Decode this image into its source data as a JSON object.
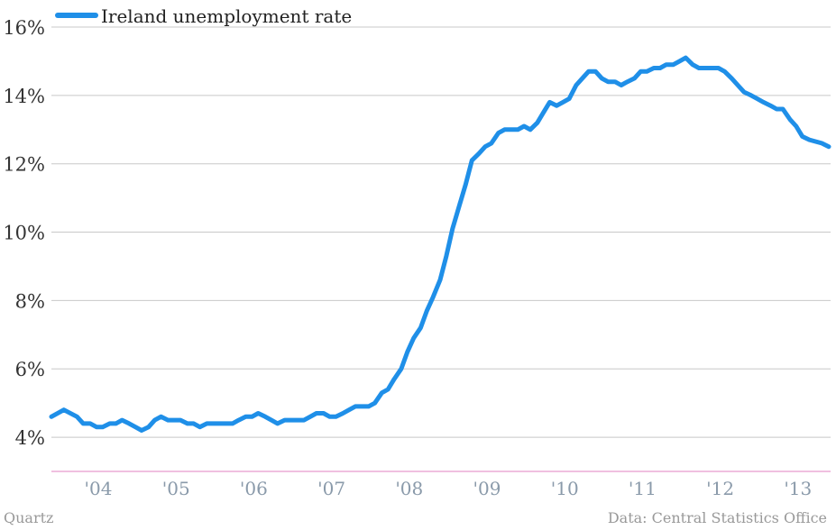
{
  "colors": {
    "series": "#1f8fe8",
    "grid": "#c8c8c8",
    "baseline": "#e080c0",
    "axis_text": "#333333",
    "x_tick_text": "#8a9aaa",
    "footer_text": "#999999"
  },
  "footer": {
    "source_left": "Quartz",
    "source_right": "Data: Central Statistics Office"
  },
  "chart_data": {
    "type": "line",
    "title": "",
    "xlabel": "",
    "ylabel": "",
    "legend_placement": "top-left",
    "grid": true,
    "ylim": [
      3,
      16
    ],
    "xlim": [
      2003.42,
      2013.42
    ],
    "y_ticks": [
      {
        "value": 4,
        "label": "4%"
      },
      {
        "value": 6,
        "label": "6%"
      },
      {
        "value": 8,
        "label": "8%"
      },
      {
        "value": 10,
        "label": "10%"
      },
      {
        "value": 12,
        "label": "12%"
      },
      {
        "value": 14,
        "label": "14%"
      },
      {
        "value": 16,
        "label": "16%"
      }
    ],
    "x_ticks": [
      {
        "value": 2004,
        "label": "'04"
      },
      {
        "value": 2005,
        "label": "'05"
      },
      {
        "value": 2006,
        "label": "'06"
      },
      {
        "value": 2007,
        "label": "'07"
      },
      {
        "value": 2008,
        "label": "'08"
      },
      {
        "value": 2009,
        "label": "'09"
      },
      {
        "value": 2010,
        "label": "'10"
      },
      {
        "value": 2011,
        "label": "'11"
      },
      {
        "value": 2012,
        "label": "'12"
      },
      {
        "value": 2013,
        "label": "'13"
      }
    ],
    "series": [
      {
        "name": "Ireland unemployment rate",
        "points": [
          [
            2003.42,
            4.6
          ],
          [
            2003.58,
            4.8
          ],
          [
            2003.75,
            4.6
          ],
          [
            2003.83,
            4.4
          ],
          [
            2003.92,
            4.4
          ],
          [
            2004.0,
            4.3
          ],
          [
            2004.08,
            4.3
          ],
          [
            2004.17,
            4.4
          ],
          [
            2004.25,
            4.4
          ],
          [
            2004.33,
            4.5
          ],
          [
            2004.42,
            4.4
          ],
          [
            2004.5,
            4.3
          ],
          [
            2004.58,
            4.2
          ],
          [
            2004.67,
            4.3
          ],
          [
            2004.75,
            4.5
          ],
          [
            2004.83,
            4.6
          ],
          [
            2004.92,
            4.5
          ],
          [
            2005.0,
            4.5
          ],
          [
            2005.08,
            4.5
          ],
          [
            2005.17,
            4.4
          ],
          [
            2005.25,
            4.4
          ],
          [
            2005.33,
            4.3
          ],
          [
            2005.42,
            4.4
          ],
          [
            2005.5,
            4.4
          ],
          [
            2005.58,
            4.4
          ],
          [
            2005.67,
            4.4
          ],
          [
            2005.75,
            4.4
          ],
          [
            2005.83,
            4.5
          ],
          [
            2005.92,
            4.6
          ],
          [
            2006.0,
            4.6
          ],
          [
            2006.08,
            4.7
          ],
          [
            2006.17,
            4.6
          ],
          [
            2006.25,
            4.5
          ],
          [
            2006.33,
            4.4
          ],
          [
            2006.42,
            4.5
          ],
          [
            2006.5,
            4.5
          ],
          [
            2006.58,
            4.5
          ],
          [
            2006.67,
            4.5
          ],
          [
            2006.75,
            4.6
          ],
          [
            2006.83,
            4.7
          ],
          [
            2006.92,
            4.7
          ],
          [
            2007.0,
            4.6
          ],
          [
            2007.08,
            4.6
          ],
          [
            2007.17,
            4.7
          ],
          [
            2007.25,
            4.8
          ],
          [
            2007.33,
            4.9
          ],
          [
            2007.42,
            4.9
          ],
          [
            2007.5,
            4.9
          ],
          [
            2007.58,
            5.0
          ],
          [
            2007.67,
            5.3
          ],
          [
            2007.75,
            5.4
          ],
          [
            2007.83,
            5.7
          ],
          [
            2007.92,
            6.0
          ],
          [
            2008.0,
            6.5
          ],
          [
            2008.08,
            6.9
          ],
          [
            2008.17,
            7.2
          ],
          [
            2008.25,
            7.7
          ],
          [
            2008.33,
            8.1
          ],
          [
            2008.42,
            8.6
          ],
          [
            2008.5,
            9.3
          ],
          [
            2008.58,
            10.1
          ],
          [
            2008.67,
            10.8
          ],
          [
            2008.75,
            11.4
          ],
          [
            2008.83,
            12.1
          ],
          [
            2008.92,
            12.3
          ],
          [
            2009.0,
            12.5
          ],
          [
            2009.08,
            12.6
          ],
          [
            2009.17,
            12.9
          ],
          [
            2009.25,
            13.0
          ],
          [
            2009.33,
            13.0
          ],
          [
            2009.42,
            13.0
          ],
          [
            2009.5,
            13.1
          ],
          [
            2009.58,
            13.0
          ],
          [
            2009.67,
            13.2
          ],
          [
            2009.75,
            13.5
          ],
          [
            2009.83,
            13.8
          ],
          [
            2009.92,
            13.7
          ],
          [
            2010.0,
            13.8
          ],
          [
            2010.08,
            13.9
          ],
          [
            2010.17,
            14.3
          ],
          [
            2010.25,
            14.5
          ],
          [
            2010.33,
            14.7
          ],
          [
            2010.42,
            14.7
          ],
          [
            2010.5,
            14.5
          ],
          [
            2010.58,
            14.4
          ],
          [
            2010.67,
            14.4
          ],
          [
            2010.75,
            14.3
          ],
          [
            2010.83,
            14.4
          ],
          [
            2010.92,
            14.5
          ],
          [
            2011.0,
            14.7
          ],
          [
            2011.08,
            14.7
          ],
          [
            2011.17,
            14.8
          ],
          [
            2011.25,
            14.8
          ],
          [
            2011.33,
            14.9
          ],
          [
            2011.42,
            14.9
          ],
          [
            2011.5,
            15.0
          ],
          [
            2011.58,
            15.1
          ],
          [
            2011.67,
            14.9
          ],
          [
            2011.75,
            14.8
          ],
          [
            2011.83,
            14.8
          ],
          [
            2011.92,
            14.8
          ],
          [
            2012.0,
            14.8
          ],
          [
            2012.08,
            14.7
          ],
          [
            2012.17,
            14.5
          ],
          [
            2012.25,
            14.3
          ],
          [
            2012.33,
            14.1
          ],
          [
            2012.42,
            14.0
          ],
          [
            2012.5,
            13.9
          ],
          [
            2012.58,
            13.8
          ],
          [
            2012.67,
            13.7
          ],
          [
            2012.75,
            13.6
          ],
          [
            2012.83,
            13.6
          ],
          [
            2012.92,
            13.3
          ],
          [
            2013.0,
            13.1
          ],
          [
            2013.08,
            12.8
          ],
          [
            2013.17,
            12.7
          ],
          [
            2013.25,
            12.65
          ],
          [
            2013.33,
            12.6
          ],
          [
            2013.42,
            12.5
          ]
        ]
      }
    ]
  }
}
